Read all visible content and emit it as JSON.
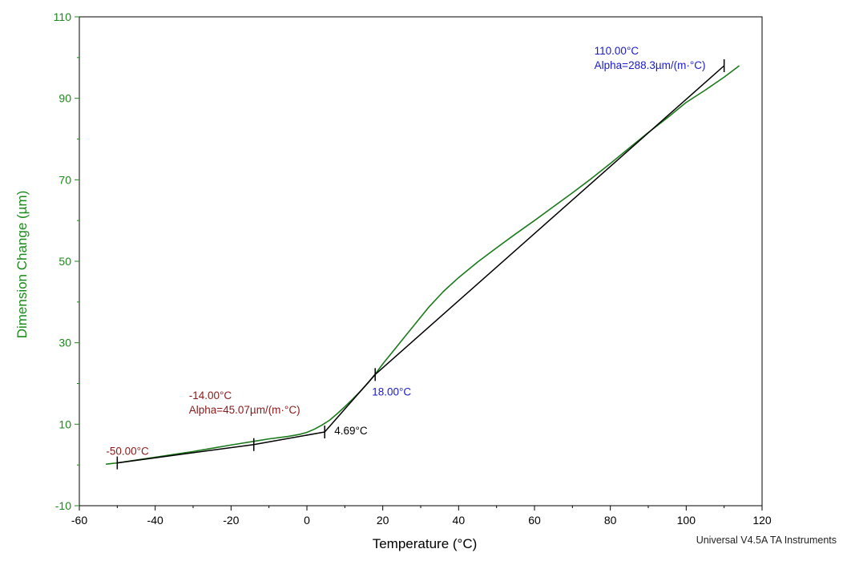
{
  "chart_data": {
    "type": "line",
    "xlabel": "Temperature (°C)",
    "ylabel": "Dimension Change (µm)",
    "xlim": [
      -60,
      120
    ],
    "ylim": [
      -10,
      110
    ],
    "x_ticks": [
      "-60",
      "-40",
      "-20",
      "0",
      "20",
      "40",
      "60",
      "80",
      "100",
      "120"
    ],
    "y_ticks": [
      "-10",
      "10",
      "30",
      "50",
      "70",
      "90",
      "110"
    ],
    "grid": false,
    "colors": {
      "curve": "#1a7a1a",
      "fit": "#000000",
      "y_axis": "#1a8a1a",
      "ann_red": "#8b1a1a",
      "ann_blue": "#1a1acc",
      "ann_black": "#000000"
    },
    "series": [
      {
        "values": [
          [
            -53,
            0.2
          ],
          [
            -50,
            0.5
          ],
          [
            -45,
            1.2
          ],
          [
            -40,
            1.9
          ],
          [
            -35,
            2.6
          ],
          [
            -30,
            3.3
          ],
          [
            -25,
            4.1
          ],
          [
            -20,
            4.9
          ],
          [
            -14,
            5.8
          ],
          [
            -10,
            6.4
          ],
          [
            -5,
            7.0
          ],
          [
            -2,
            7.5
          ],
          [
            0,
            8.0
          ],
          [
            2,
            8.8
          ],
          [
            4,
            9.8
          ],
          [
            6,
            11.0
          ],
          [
            8,
            12.6
          ],
          [
            10,
            14.3
          ],
          [
            12,
            16.1
          ],
          [
            14,
            18.0
          ],
          [
            16,
            20.0
          ],
          [
            18,
            22.3
          ],
          [
            20,
            24.8
          ],
          [
            24,
            29.4
          ],
          [
            28,
            34.0
          ],
          [
            32,
            38.6
          ],
          [
            36,
            42.6
          ],
          [
            40,
            46.0
          ],
          [
            45,
            49.8
          ],
          [
            50,
            53.3
          ],
          [
            55,
            56.7
          ],
          [
            60,
            60.0
          ],
          [
            65,
            63.4
          ],
          [
            70,
            66.8
          ],
          [
            75,
            70.3
          ],
          [
            80,
            74.0
          ],
          [
            85,
            77.8
          ],
          [
            90,
            81.6
          ],
          [
            95,
            85.2
          ],
          [
            100,
            89.0
          ],
          [
            105,
            92.0
          ],
          [
            110,
            95.2
          ],
          [
            114,
            98.0
          ]
        ]
      }
    ],
    "fit_lines": [
      [
        [
          -50,
          0.5
        ],
        [
          -14,
          5.0
        ],
        [
          4.69,
          8.1
        ]
      ],
      [
        [
          4.69,
          8.1
        ],
        [
          18,
          22.2
        ],
        [
          110,
          98.0
        ]
      ]
    ],
    "markers": [
      {
        "x": -50,
        "y": 0.5
      },
      {
        "x": -14,
        "y": 5.0
      },
      {
        "x": 4.69,
        "y": 8.1
      },
      {
        "x": 18,
        "y": 22.2
      },
      {
        "x": 110,
        "y": 98.0
      }
    ],
    "annotations": [
      {
        "text": "-50.00°C",
        "color": "ann_red"
      },
      {
        "text": "-14.00°C",
        "color": "ann_red"
      },
      {
        "text": "Alpha=45.07µm/(m·°C)",
        "color": "ann_red"
      },
      {
        "text": "4.69°C",
        "color": "ann_black"
      },
      {
        "text": "18.00°C",
        "color": "ann_blue"
      },
      {
        "text": "110.00°C",
        "color": "ann_blue"
      },
      {
        "text": "Alpha=288.3µm/(m·°C)",
        "color": "ann_blue"
      }
    ]
  },
  "footer": "Universal V4.5A TA Instruments"
}
